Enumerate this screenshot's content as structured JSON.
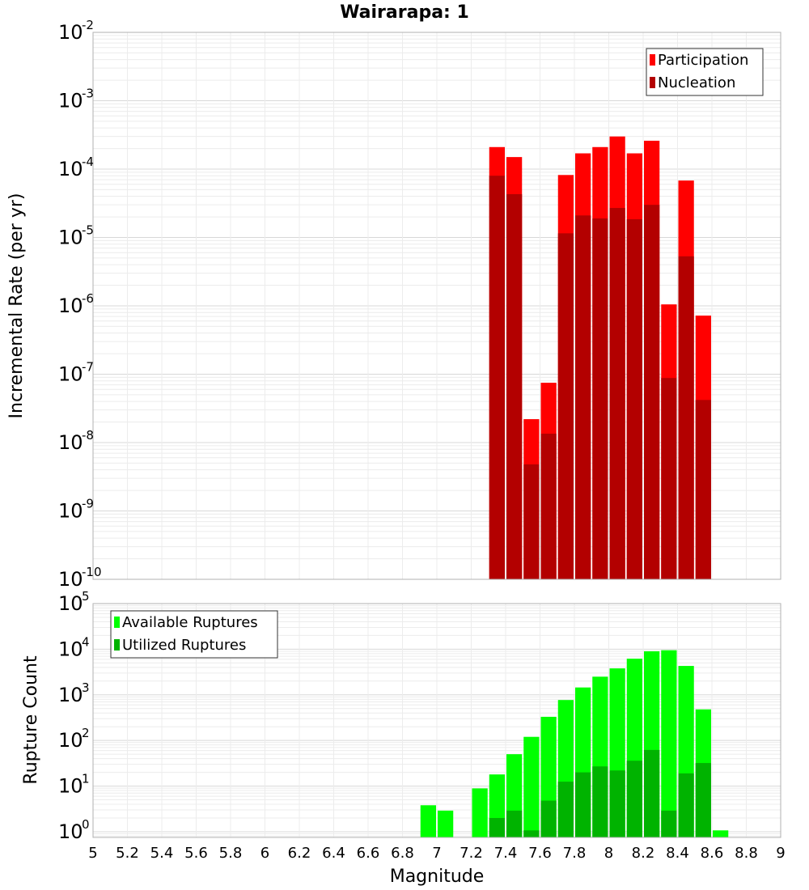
{
  "chart_data": [
    {
      "type": "bar",
      "title": "Wairarapa: 1",
      "xlabel": "",
      "ylabel": "Incremental Rate (per yr)",
      "yscale": "log",
      "ylim": [
        1e-10,
        0.01
      ],
      "xlim": [
        5,
        9
      ],
      "grid": true,
      "legend_position": "top-right",
      "x": [
        7.35,
        7.45,
        7.55,
        7.65,
        7.75,
        7.85,
        7.95,
        8.05,
        8.15,
        8.25,
        8.35,
        8.45,
        8.55
      ],
      "series": [
        {
          "name": "Participation",
          "color": "#ff0000",
          "values": [
            0.00021,
            0.00015,
            2.2e-08,
            7.5e-08,
            8.2e-05,
            0.00017,
            0.00021,
            0.0003,
            0.00017,
            0.00026,
            1.05e-06,
            6.8e-05,
            7.2e-07
          ]
        },
        {
          "name": "Nucleation",
          "color": "#b30000",
          "values": [
            8e-05,
            4.3e-05,
            4.8e-09,
            1.35e-08,
            1.15e-05,
            2.1e-05,
            1.9e-05,
            2.7e-05,
            1.85e-05,
            3e-05,
            8.8e-08,
            5.3e-06,
            4.2e-08
          ]
        }
      ]
    },
    {
      "type": "bar",
      "title": "",
      "xlabel": "Magnitude",
      "ylabel": "Rupture Count",
      "yscale": "log",
      "ylim": [
        0.75,
        100000
      ],
      "xlim": [
        5,
        9
      ],
      "grid": true,
      "legend_position": "top-left",
      "x": [
        6.95,
        7.05,
        7.25,
        7.35,
        7.45,
        7.55,
        7.65,
        7.75,
        7.85,
        7.95,
        8.05,
        8.15,
        8.25,
        8.35,
        8.45,
        8.55,
        8.65
      ],
      "series": [
        {
          "name": "Available Ruptures",
          "color": "#00ff00",
          "values": [
            3.8,
            2.9,
            8.9,
            18,
            50,
            120,
            330,
            770,
            1450,
            2500,
            3800,
            6200,
            9000,
            9500,
            4300,
            480,
            1.07
          ]
        },
        {
          "name": "Utilized Ruptures",
          "color": "#00b300",
          "values": [
            0,
            0,
            0,
            2,
            2.9,
            1.07,
            4.8,
            12.5,
            20,
            27,
            22,
            36,
            62,
            2.9,
            19,
            32,
            0
          ]
        }
      ],
      "xticks": [
        "5",
        "5.2",
        "5.4",
        "5.6",
        "5.8",
        "6",
        "6.2",
        "6.4",
        "6.6",
        "6.8",
        "7",
        "7.2",
        "7.4",
        "7.6",
        "7.8",
        "8",
        "8.2",
        "8.4",
        "8.6",
        "8.8",
        "9"
      ]
    }
  ]
}
